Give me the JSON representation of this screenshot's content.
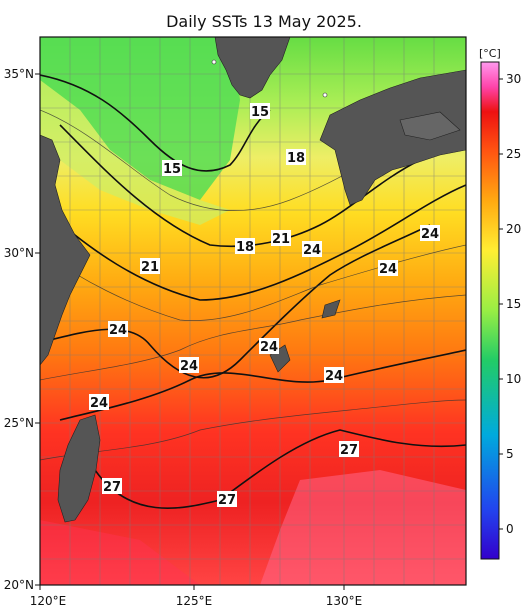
{
  "title": "Daily SSTs 13 May 2025.",
  "lat_labels": [
    "35°N",
    "30°N",
    "25°N",
    "20°N"
  ],
  "lon_labels": [
    "120°E",
    "125°E",
    "130°E"
  ],
  "colorbar": {
    "unit": "[°C]",
    "ticks": [
      "30",
      "25",
      "20",
      "15",
      "10",
      "5",
      "0"
    ],
    "colors": [
      "#3300ff",
      "#2266ee",
      "#00bbdd",
      "#33cc66",
      "#99ee44",
      "#eeee44",
      "#ffcc00",
      "#ff8800",
      "#ff3300",
      "#ee1111",
      "#ff66cc",
      "#ff99ee"
    ]
  },
  "contour_labels": [
    {
      "text": "15"
    },
    {
      "text": "15"
    },
    {
      "text": "18"
    },
    {
      "text": "18"
    },
    {
      "text": "21"
    },
    {
      "text": "21"
    },
    {
      "text": "24"
    },
    {
      "text": "24"
    },
    {
      "text": "24"
    },
    {
      "text": "24"
    },
    {
      "text": "24"
    },
    {
      "text": "24"
    },
    {
      "text": "24"
    },
    {
      "text": "24"
    },
    {
      "text": "27"
    },
    {
      "text": "27"
    },
    {
      "text": "27"
    }
  ]
}
